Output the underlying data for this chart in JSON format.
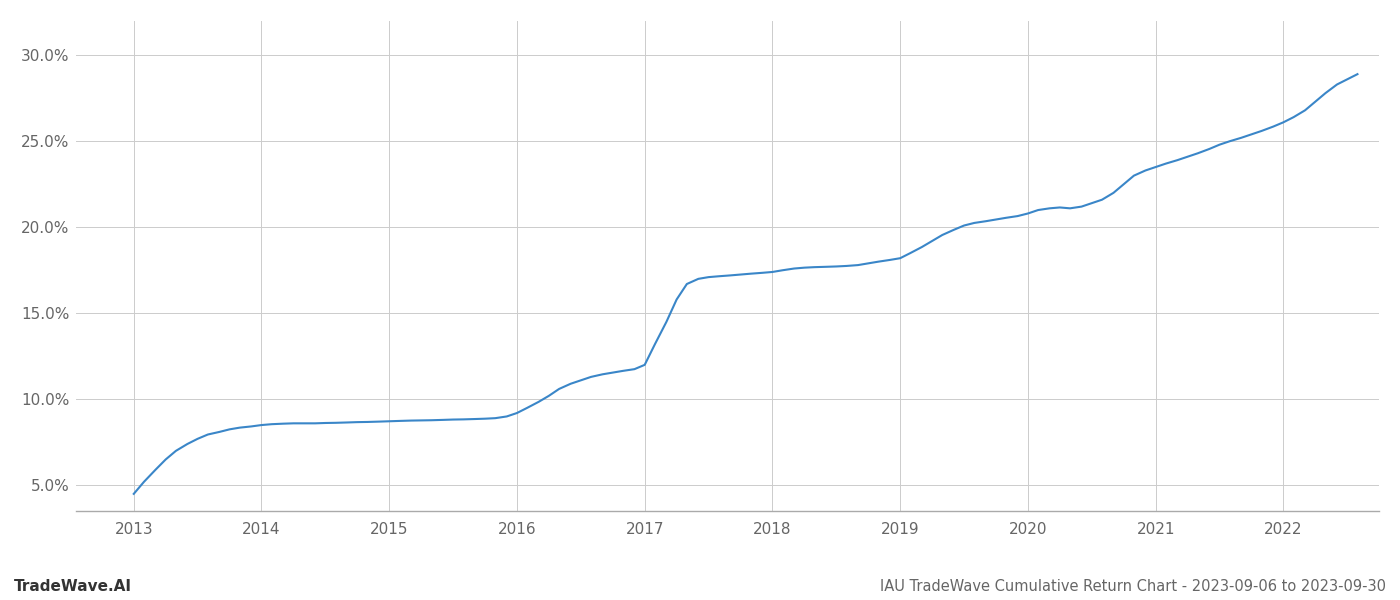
{
  "title": "IAU TradeWave Cumulative Return Chart - 2023-09-06 to 2023-09-30",
  "watermark": "TradeWave.AI",
  "line_color": "#3a86c8",
  "background_color": "#ffffff",
  "grid_color": "#cccccc",
  "x_years": [
    2013,
    2014,
    2015,
    2016,
    2017,
    2018,
    2019,
    2020,
    2021,
    2022
  ],
  "data_x": [
    2013.0,
    2013.08,
    2013.17,
    2013.25,
    2013.33,
    2013.42,
    2013.5,
    2013.58,
    2013.67,
    2013.75,
    2013.83,
    2013.92,
    2014.0,
    2014.08,
    2014.17,
    2014.25,
    2014.33,
    2014.42,
    2014.5,
    2014.58,
    2014.67,
    2014.75,
    2014.83,
    2014.92,
    2015.0,
    2015.08,
    2015.17,
    2015.25,
    2015.33,
    2015.42,
    2015.5,
    2015.58,
    2015.67,
    2015.75,
    2015.83,
    2015.92,
    2016.0,
    2016.08,
    2016.17,
    2016.25,
    2016.33,
    2016.42,
    2016.5,
    2016.58,
    2016.67,
    2016.75,
    2016.83,
    2016.92,
    2017.0,
    2017.08,
    2017.17,
    2017.25,
    2017.33,
    2017.42,
    2017.5,
    2017.58,
    2017.67,
    2017.75,
    2017.83,
    2017.92,
    2018.0,
    2018.08,
    2018.17,
    2018.25,
    2018.33,
    2018.42,
    2018.5,
    2018.58,
    2018.67,
    2018.75,
    2018.83,
    2018.92,
    2019.0,
    2019.08,
    2019.17,
    2019.25,
    2019.33,
    2019.42,
    2019.5,
    2019.58,
    2019.67,
    2019.75,
    2019.83,
    2019.92,
    2020.0,
    2020.08,
    2020.17,
    2020.25,
    2020.33,
    2020.42,
    2020.5,
    2020.58,
    2020.67,
    2020.75,
    2020.83,
    2020.92,
    2021.0,
    2021.08,
    2021.17,
    2021.25,
    2021.33,
    2021.42,
    2021.5,
    2021.58,
    2021.67,
    2021.75,
    2021.83,
    2021.92,
    2022.0,
    2022.08,
    2022.17,
    2022.25,
    2022.33,
    2022.42,
    2022.58
  ],
  "data_y": [
    4.5,
    5.2,
    5.9,
    6.5,
    7.0,
    7.4,
    7.7,
    7.95,
    8.1,
    8.25,
    8.35,
    8.42,
    8.5,
    8.55,
    8.58,
    8.6,
    8.6,
    8.6,
    8.62,
    8.63,
    8.65,
    8.67,
    8.68,
    8.7,
    8.72,
    8.74,
    8.76,
    8.77,
    8.78,
    8.8,
    8.82,
    8.83,
    8.85,
    8.87,
    8.9,
    9.0,
    9.2,
    9.5,
    9.85,
    10.2,
    10.6,
    10.9,
    11.1,
    11.3,
    11.45,
    11.55,
    11.65,
    11.75,
    12.0,
    13.2,
    14.5,
    15.8,
    16.7,
    17.0,
    17.1,
    17.15,
    17.2,
    17.25,
    17.3,
    17.35,
    17.4,
    17.5,
    17.6,
    17.65,
    17.68,
    17.7,
    17.72,
    17.75,
    17.8,
    17.9,
    18.0,
    18.1,
    18.2,
    18.5,
    18.85,
    19.2,
    19.55,
    19.85,
    20.1,
    20.25,
    20.35,
    20.45,
    20.55,
    20.65,
    20.8,
    21.0,
    21.1,
    21.15,
    21.1,
    21.2,
    21.4,
    21.6,
    22.0,
    22.5,
    23.0,
    23.3,
    23.5,
    23.7,
    23.9,
    24.1,
    24.3,
    24.55,
    24.8,
    25.0,
    25.2,
    25.4,
    25.6,
    25.85,
    26.1,
    26.4,
    26.8,
    27.3,
    27.8,
    28.3,
    28.9
  ],
  "ylim": [
    3.5,
    32.0
  ],
  "yticks": [
    5.0,
    10.0,
    15.0,
    20.0,
    25.0,
    30.0
  ],
  "ytick_labels": [
    "5.0%",
    "10.0%",
    "15.0%",
    "20.0%",
    "25.0%",
    "30.0%"
  ],
  "title_fontsize": 10.5,
  "watermark_fontsize": 11,
  "tick_fontsize": 11,
  "line_width": 1.5
}
